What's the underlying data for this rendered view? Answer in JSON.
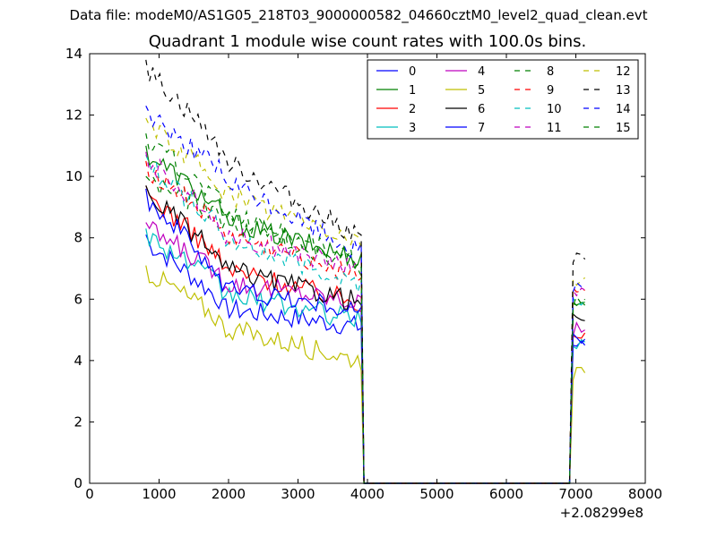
{
  "figure": {
    "suptitle": "Data file: modeM0/AS1G05_218T03_9000000582_04660cztM0_level2_quad_clean.evt",
    "title": "Quadrant 1 module wise count rates with 100.0s bins.",
    "x_offset_label": "+2.08299e8"
  },
  "chart_data": {
    "type": "line",
    "title": "Quadrant 1 module wise count rates with 100.0s bins.",
    "xlabel": "",
    "ylabel": "",
    "xlim": [
      0,
      8000
    ],
    "ylim": [
      0,
      14
    ],
    "x_offset": "+2.08299e8",
    "xticks": [
      "0",
      "1000",
      "2000",
      "3000",
      "4000",
      "5000",
      "6000",
      "7000",
      "8000"
    ],
    "yticks": [
      "0",
      "2",
      "4",
      "6",
      "8",
      "10",
      "12",
      "14"
    ],
    "grid": false,
    "legend": {
      "position": "top-right",
      "columns": 4
    },
    "x": [
      0,
      3950,
      6900,
      7150
    ],
    "segments": [
      {
        "x_start": 810,
        "x_end": 3950,
        "step": 100
      },
      {
        "x_start": 3950,
        "x_end": 6910,
        "flat": 0
      },
      {
        "x_start": 6910,
        "x_end": 7130,
        "step": 50
      }
    ],
    "series": [
      {
        "name": "0",
        "color": "#0000ff",
        "dash": "solid",
        "y0": 8.1,
        "y_mid": 5.7,
        "y_end": 5.1,
        "y_after": 4.5
      },
      {
        "name": "1",
        "color": "#008000",
        "dash": "solid",
        "y0": 11.0,
        "y_mid": 8.6,
        "y_end": 7.3,
        "y_after": 5.9
      },
      {
        "name": "2",
        "color": "#ff0000",
        "dash": "solid",
        "y0": 9.7,
        "y_mid": 7.0,
        "y_end": 5.9,
        "y_after": 4.9
      },
      {
        "name": "3",
        "color": "#00bfbf",
        "dash": "solid",
        "y0": 8.3,
        "y_mid": 6.2,
        "y_end": 5.3,
        "y_after": 4.6
      },
      {
        "name": "4",
        "color": "#bf00bf",
        "dash": "solid",
        "y0": 8.5,
        "y_mid": 6.6,
        "y_end": 5.9,
        "y_after": 5.0
      },
      {
        "name": "5",
        "color": "#bfbf00",
        "dash": "solid",
        "y0": 7.1,
        "y_mid": 5.1,
        "y_end": 4.0,
        "y_after": 3.6
      },
      {
        "name": "6",
        "color": "#000000",
        "dash": "solid",
        "y0": 9.7,
        "y_mid": 7.0,
        "y_end": 5.9,
        "y_after": 5.3
      },
      {
        "name": "7",
        "color": "#0000ff",
        "dash": "solid",
        "y0": 9.6,
        "y_mid": 6.4,
        "y_end": 5.6,
        "y_after": 4.7
      },
      {
        "name": "8",
        "color": "#008000",
        "dash": "dashed",
        "y0": 10.0,
        "y_mid": 8.6,
        "y_end": 7.1,
        "y_after": 5.8
      },
      {
        "name": "9",
        "color": "#ff0000",
        "dash": "dashed",
        "y0": 10.5,
        "y_mid": 8.1,
        "y_end": 6.8,
        "y_after": 6.3
      },
      {
        "name": "10",
        "color": "#00bfbf",
        "dash": "dashed",
        "y0": 10.7,
        "y_mid": 8.0,
        "y_end": 6.5,
        "y_after": 6.0
      },
      {
        "name": "11",
        "color": "#bf00bf",
        "dash": "dashed",
        "y0": 10.8,
        "y_mid": 8.2,
        "y_end": 6.9,
        "y_after": 6.3
      },
      {
        "name": "12",
        "color": "#bfbf00",
        "dash": "dashed",
        "y0": 11.9,
        "y_mid": 9.5,
        "y_end": 7.8,
        "y_after": 6.7
      },
      {
        "name": "13",
        "color": "#000000",
        "dash": "dashed",
        "y0": 13.8,
        "y_mid": 10.6,
        "y_end": 8.0,
        "y_after": 7.3
      },
      {
        "name": "14",
        "color": "#0000ff",
        "dash": "dashed",
        "y0": 12.3,
        "y_mid": 9.9,
        "y_end": 7.5,
        "y_after": 6.4
      },
      {
        "name": "15",
        "color": "#008000",
        "dash": "dashed",
        "y0": 11.4,
        "y_mid": 8.9,
        "y_end": 7.2,
        "y_after": 6.0
      }
    ]
  }
}
